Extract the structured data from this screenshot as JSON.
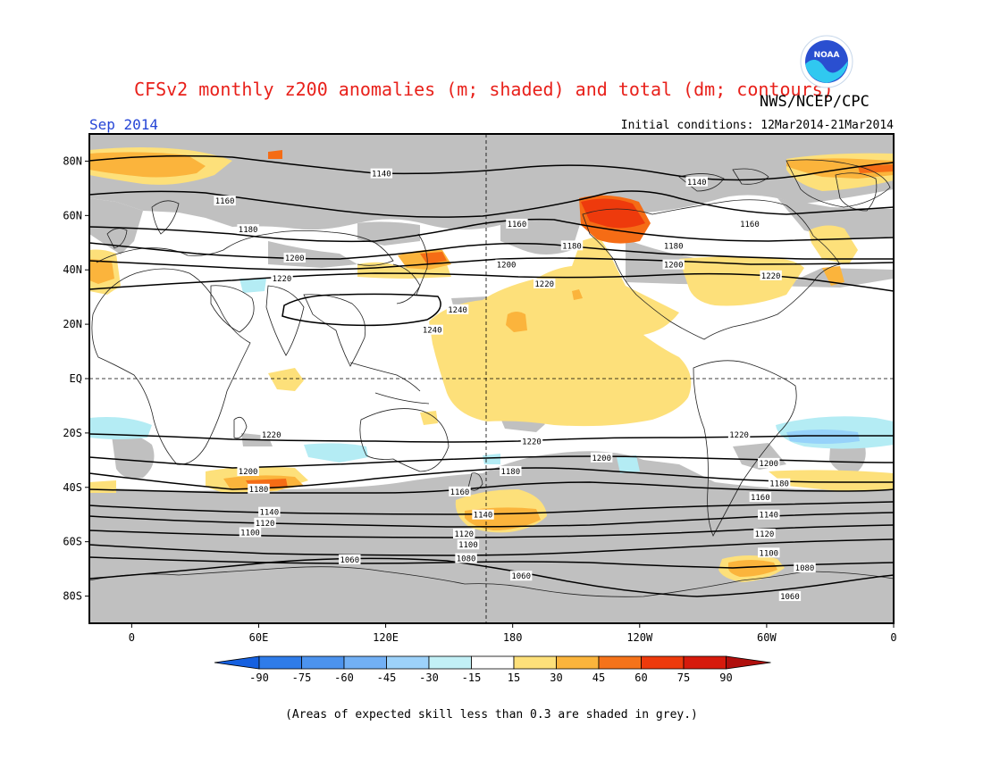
{
  "header": {
    "title": "CFSv2 monthly z200 anomalies (m; shaded) and total (dm; contours)",
    "agency": "NWS/NCEP/CPC",
    "month": "Sep 2014",
    "initial_conditions": "Initial conditions: 12Mar2014-21Mar2014"
  },
  "logo": {
    "text": "NOAA",
    "icon": "noaa-logo-icon"
  },
  "footnote": "(Areas of expected skill less than 0.3 are shaded in grey.)",
  "map": {
    "lat_labels": [
      "80N",
      "60N",
      "40N",
      "20N",
      "EQ",
      "20S",
      "40S",
      "60S",
      "80S"
    ],
    "lon_labels": [
      "0",
      "60E",
      "120E",
      "180",
      "120W",
      "60W",
      "0"
    ],
    "colors": {
      "skill_grey": "#c0c0c0",
      "positive_15_30": "#fde07a",
      "positive_30_45": "#fbb43c",
      "positive_45_60": "#f56c15",
      "positive_60_75": "#ee3a0c",
      "negative_15_30": "#b4ecf4",
      "negative_30_45": "#96d2fa"
    },
    "contour_labels": [
      {
        "text": "1140",
        "lon": 118,
        "lat": 75.5
      },
      {
        "text": "1140",
        "lon": 267,
        "lat": 72.5
      },
      {
        "text": "1160",
        "lon": 44,
        "lat": 65.5
      },
      {
        "text": "1160",
        "lon": 182,
        "lat": 57
      },
      {
        "text": "1160",
        "lon": 292,
        "lat": 57
      },
      {
        "text": "1180",
        "lon": 55,
        "lat": 55
      },
      {
        "text": "1180",
        "lon": 208,
        "lat": 49
      },
      {
        "text": "1180",
        "lon": 256,
        "lat": 49
      },
      {
        "text": "1200",
        "lon": 77,
        "lat": 44.5
      },
      {
        "text": "1200",
        "lon": 177,
        "lat": 42
      },
      {
        "text": "1200",
        "lon": 256,
        "lat": 42
      },
      {
        "text": "1220",
        "lon": 71,
        "lat": 37
      },
      {
        "text": "1220",
        "lon": 195,
        "lat": 35
      },
      {
        "text": "1220",
        "lon": 302,
        "lat": 38
      },
      {
        "text": "1240",
        "lon": 154,
        "lat": 25.5
      },
      {
        "text": "1240",
        "lon": 142,
        "lat": 18
      },
      {
        "text": "1220",
        "lon": 66,
        "lat": -20.5
      },
      {
        "text": "1220",
        "lon": 189,
        "lat": -23
      },
      {
        "text": "1220",
        "lon": 287,
        "lat": -20.5
      },
      {
        "text": "1200",
        "lon": 55,
        "lat": -34
      },
      {
        "text": "1200",
        "lon": 222,
        "lat": -29
      },
      {
        "text": "1200",
        "lon": 301,
        "lat": -31
      },
      {
        "text": "1180",
        "lon": 60,
        "lat": -40.5
      },
      {
        "text": "1180",
        "lon": 179,
        "lat": -34
      },
      {
        "text": "1180",
        "lon": 306,
        "lat": -38.5
      },
      {
        "text": "1160",
        "lon": 155,
        "lat": -41.5
      },
      {
        "text": "1160",
        "lon": 297,
        "lat": -43.5
      },
      {
        "text": "1140",
        "lon": 65,
        "lat": -49
      },
      {
        "text": "1140",
        "lon": 166,
        "lat": -50
      },
      {
        "text": "1140",
        "lon": 301,
        "lat": -50
      },
      {
        "text": "1120",
        "lon": 63,
        "lat": -53
      },
      {
        "text": "1120",
        "lon": 157,
        "lat": -57
      },
      {
        "text": "1120",
        "lon": 299,
        "lat": -57
      },
      {
        "text": "1100",
        "lon": 56,
        "lat": -56.5
      },
      {
        "text": "1100",
        "lon": 159,
        "lat": -61
      },
      {
        "text": "1100",
        "lon": 301,
        "lat": -64
      },
      {
        "text": "1080",
        "lon": 158,
        "lat": -66
      },
      {
        "text": "1080",
        "lon": 318,
        "lat": -69.5
      },
      {
        "text": "1060",
        "lon": 103,
        "lat": -66.5
      },
      {
        "text": "1060",
        "lon": 184,
        "lat": -72.5
      },
      {
        "text": "1060",
        "lon": 311,
        "lat": -80
      }
    ]
  },
  "colorbar": {
    "labels": [
      "-90",
      "-75",
      "-60",
      "-45",
      "-30",
      "-15",
      "15",
      "30",
      "45",
      "60",
      "75",
      "90"
    ],
    "colors": [
      "#1560e0",
      "#2f7ce9",
      "#4c93ee",
      "#72b0f5",
      "#9dd2fa",
      "#c2f0f6",
      "#ffffff",
      "#fde07a",
      "#fbb43c",
      "#f5731a",
      "#ee3a0c",
      "#d61a0c",
      "#b00f0d"
    ]
  }
}
